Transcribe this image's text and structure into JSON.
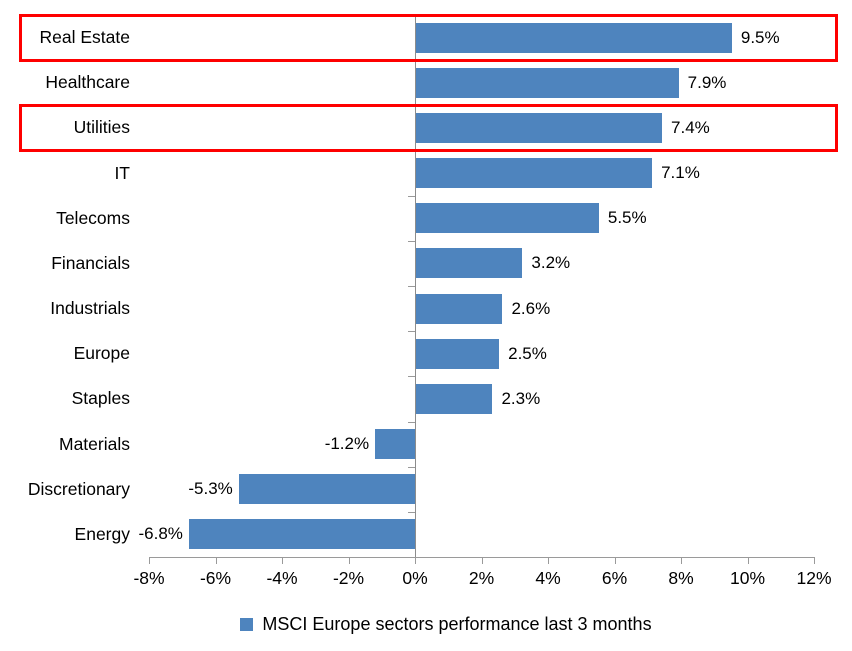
{
  "chart_data": {
    "type": "bar",
    "orientation": "horizontal",
    "categories": [
      "Real Estate",
      "Healthcare",
      "Utilities",
      "IT",
      "Telecoms",
      "Financials",
      "Industrials",
      "Europe",
      "Staples",
      "Materials",
      "Discretionary",
      "Energy"
    ],
    "values": [
      9.5,
      7.9,
      7.4,
      7.1,
      5.5,
      3.2,
      2.6,
      2.5,
      2.3,
      -1.2,
      -5.3,
      -6.8
    ],
    "value_labels": [
      "9.5%",
      "7.9%",
      "7.4%",
      "7.1%",
      "5.5%",
      "3.2%",
      "2.6%",
      "2.5%",
      "2.3%",
      "-1.2%",
      "-5.3%",
      "-6.8%"
    ],
    "xlim": [
      -8,
      12
    ],
    "x_tick_values": [
      -8,
      -6,
      -4,
      -2,
      0,
      2,
      4,
      6,
      8,
      10,
      12
    ],
    "x_tick_labels": [
      "-8%",
      "-6%",
      "-4%",
      "-2%",
      "0%",
      "2%",
      "4%",
      "6%",
      "8%",
      "10%",
      "12%"
    ],
    "grid": false,
    "legend": {
      "label": "MSCI Europe sectors performance last 3 months",
      "position": "bottom"
    },
    "highlighted_categories": [
      "Real Estate",
      "Utilities"
    ],
    "colors": {
      "bar": "#4e84be",
      "axis": "#9a9a9a",
      "zero_line": "#8c8c8c",
      "highlight_border": "#fe0000",
      "text": "#000000"
    }
  }
}
